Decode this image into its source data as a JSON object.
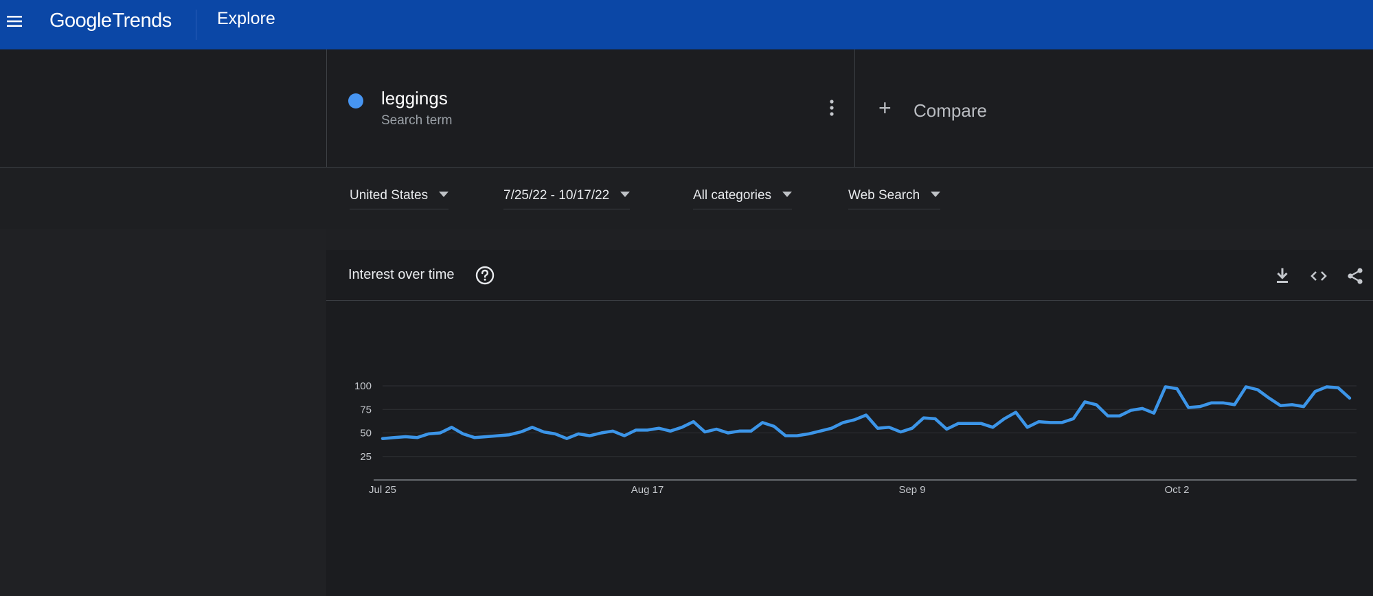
{
  "header": {
    "logo_google": "Google",
    "logo_trends": "Trends",
    "page": "Explore"
  },
  "search_term": {
    "name": "leggings",
    "type": "Search term",
    "color": "#4795f1"
  },
  "compare": {
    "plus": "+",
    "label": "Compare"
  },
  "filters": {
    "region": "United States",
    "date_range": "7/25/22 - 10/17/22",
    "category": "All categories",
    "search_type": "Web Search"
  },
  "card": {
    "title": "Interest over time",
    "icons": [
      "help-icon",
      "download-icon",
      "embed-icon",
      "share-icon"
    ]
  },
  "chart_data": {
    "type": "line",
    "start_date": "2022-07-25",
    "yticks": [
      25,
      50,
      75,
      100
    ],
    "ylim": [
      0,
      100
    ],
    "xtick_labels": [
      {
        "label": "Jul 25",
        "index": 0
      },
      {
        "label": "Aug 17",
        "index": 23
      },
      {
        "label": "Sep 9",
        "index": 46
      },
      {
        "label": "Oct 2",
        "index": 69
      }
    ],
    "series": [
      {
        "color": "#3c95e8",
        "values": [
          44,
          45,
          46,
          45,
          49,
          50,
          56,
          49,
          45,
          46,
          47,
          48,
          51,
          56,
          51,
          49,
          44,
          49,
          47,
          50,
          52,
          47,
          53,
          53,
          55,
          52,
          56,
          62,
          51,
          54,
          50,
          52,
          52,
          61,
          57,
          47,
          47,
          49,
          52,
          55,
          61,
          64,
          69,
          55,
          56,
          51,
          55,
          66,
          65,
          54,
          60,
          60,
          60,
          56,
          65,
          72,
          56,
          62,
          61,
          61,
          65,
          83,
          80,
          68,
          68,
          74,
          76,
          71,
          99,
          97,
          77,
          78,
          82,
          82,
          80,
          99,
          96,
          87,
          79,
          80,
          78,
          94,
          99,
          98,
          87
        ]
      }
    ]
  }
}
